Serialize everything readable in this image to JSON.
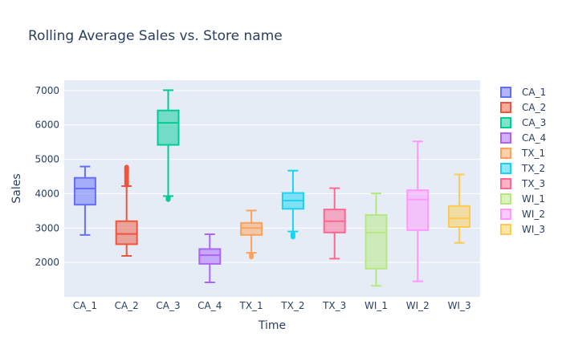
{
  "chart_data": {
    "type": "box",
    "title": "Rolling Average Sales vs. Store name",
    "xlabel": "Time",
    "ylabel": "Sales",
    "ylim": [
      1000,
      7300
    ],
    "yticks": [
      2000,
      3000,
      4000,
      5000,
      6000,
      7000
    ],
    "grid": true,
    "legend_position": "right",
    "series": [
      {
        "name": "CA_1",
        "color": "#636efa",
        "min": 2800,
        "q1": 3680,
        "median": 4150,
        "q3": 4460,
        "max": 4790,
        "outliers": []
      },
      {
        "name": "CA_2",
        "color": "#ef553b",
        "min": 2190,
        "q1": 2530,
        "median": 2830,
        "q3": 3200,
        "max": 4220,
        "outliers": [
          4250,
          4320,
          4380,
          4430,
          4480,
          4520,
          4570,
          4610,
          4650,
          4700,
          4740,
          4770
        ]
      },
      {
        "name": "CA_3",
        "color": "#00cc96",
        "min": 3930,
        "q1": 5420,
        "median": 6060,
        "q3": 6420,
        "max": 7010,
        "outliers": [
          3830,
          3860,
          3890
        ]
      },
      {
        "name": "CA_4",
        "color": "#ab63fa",
        "min": 1420,
        "q1": 1960,
        "median": 2210,
        "q3": 2390,
        "max": 2820,
        "outliers": []
      },
      {
        "name": "TX_1",
        "color": "#ffa15a",
        "min": 2280,
        "q1": 2800,
        "median": 3000,
        "q3": 3150,
        "max": 3510,
        "outliers": [
          2160,
          2190,
          2220
        ]
      },
      {
        "name": "TX_2",
        "color": "#19d3f3",
        "min": 2900,
        "q1": 3560,
        "median": 3800,
        "q3": 4020,
        "max": 4670,
        "outliers": [
          2740,
          2780,
          2830
        ]
      },
      {
        "name": "TX_3",
        "color": "#ff6692",
        "min": 2110,
        "q1": 2870,
        "median": 3200,
        "q3": 3540,
        "max": 4160,
        "outliers": []
      },
      {
        "name": "WI_1",
        "color": "#b6e880",
        "min": 1320,
        "q1": 1820,
        "median": 2870,
        "q3": 3380,
        "max": 4010,
        "outliers": []
      },
      {
        "name": "WI_2",
        "color": "#ff97ff",
        "min": 1450,
        "q1": 2940,
        "median": 3830,
        "q3": 4100,
        "max": 5520,
        "outliers": []
      },
      {
        "name": "WI_3",
        "color": "#fecb52",
        "min": 2570,
        "q1": 3030,
        "median": 3280,
        "q3": 3640,
        "max": 4560,
        "outliers": []
      }
    ]
  }
}
